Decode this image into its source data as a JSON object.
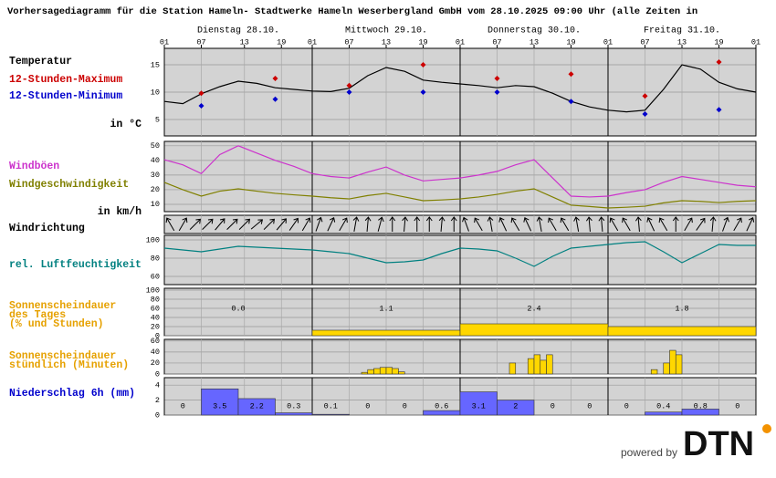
{
  "header": {
    "title": "Vorhersagediagramm für die Station Hameln- Stadtwerke Hameln Weserbergland GmbH vom 28.10.2025 09:00 Uhr (alle Zeiten in",
    "days": [
      "Dienstag 28.10.",
      "Mittwoch 29.10.",
      "Donnerstag 30.10.",
      "Freitag 31.10."
    ],
    "xlim": [
      0,
      96
    ],
    "xticks": [
      {
        "value": 0,
        "label": "01"
      },
      {
        "value": 6,
        "label": "07"
      },
      13,
      19,
      {
        "value": 24,
        "label": "01"
      },
      {
        "value": 30,
        "label": "07"
      },
      {
        "value": 36,
        "label": "13"
      },
      {
        "value": 42,
        "label": "19"
      },
      {
        "value": 48,
        "label": "01"
      },
      {
        "value": 54,
        "label": "07"
      },
      {
        "value": 60,
        "label": "13"
      },
      {
        "value": 66,
        "label": "19"
      },
      {
        "value": 72,
        "label": "01"
      },
      {
        "value": 78,
        "label": "07"
      },
      {
        "value": 84,
        "label": "13"
      },
      {
        "value": 90,
        "label": "19"
      },
      {
        "value": 96,
        "label": "01"
      }
    ]
  },
  "chart_data": [
    {
      "type": "line",
      "title": "Temperatur",
      "unit": "in °C",
      "ylim": [
        2,
        18
      ],
      "yticks": [
        5,
        10,
        15
      ],
      "grid": true,
      "series": [
        {
          "style": "line",
          "color": "#000000",
          "x": [
            0,
            3,
            6,
            9,
            12,
            15,
            18,
            21,
            24,
            27,
            30,
            33,
            36,
            39,
            42,
            45,
            48,
            51,
            54,
            57,
            60,
            63,
            66,
            69,
            72,
            75,
            78,
            81,
            84,
            87,
            90,
            93,
            96
          ],
          "values": [
            8.3,
            7.9,
            9.7,
            11.0,
            12.0,
            11.6,
            10.8,
            10.5,
            10.2,
            10.1,
            10.7,
            13.0,
            14.5,
            13.8,
            12.2,
            11.8,
            11.5,
            11.2,
            10.8,
            11.2,
            11.0,
            9.8,
            8.3,
            7.3,
            6.7,
            6.4,
            6.7,
            10.5,
            15.0,
            14.2,
            11.8,
            10.6,
            10.0
          ]
        },
        {
          "name": "12-Stunden-Maximum",
          "style": "points",
          "color": "#cc0000",
          "x": [
            6,
            18,
            30,
            42,
            54,
            66,
            78,
            90
          ],
          "values": [
            9.8,
            12.5,
            11.2,
            15.0,
            12.5,
            13.3,
            9.3,
            15.5
          ]
        },
        {
          "name": "12-Stunden-Minimum",
          "style": "points",
          "color": "#0000cc",
          "x": [
            6,
            18,
            30,
            42,
            54,
            66,
            78,
            90
          ],
          "values": [
            7.5,
            8.7,
            10.0,
            10.0,
            10.0,
            8.3,
            6.0,
            6.8
          ]
        }
      ]
    },
    {
      "type": "line",
      "unit": "in km/h",
      "ylim": [
        5,
        53
      ],
      "yticks": [
        10,
        20,
        30,
        40,
        50
      ],
      "grid": true,
      "series": [
        {
          "name": "Windböen",
          "style": "line",
          "color": "#cc33cc",
          "x": [
            0,
            3,
            6,
            9,
            12,
            15,
            18,
            21,
            24,
            27,
            30,
            33,
            36,
            39,
            42,
            45,
            48,
            51,
            54,
            57,
            60,
            63,
            66,
            69,
            72,
            75,
            78,
            81,
            84,
            87,
            90,
            93,
            96
          ],
          "values": [
            40.5,
            37,
            31,
            44,
            50,
            45,
            40,
            36,
            31,
            29,
            28,
            32,
            35.5,
            30,
            26,
            27,
            28,
            30,
            32.5,
            37,
            40.5,
            28,
            15.6,
            15,
            15.6,
            18,
            20,
            25,
            29,
            27,
            25,
            23,
            22
          ]
        },
        {
          "name": "Windgeschwindigkeit",
          "style": "line",
          "color": "#808000",
          "x": [
            0,
            3,
            6,
            9,
            12,
            15,
            18,
            21,
            24,
            27,
            30,
            33,
            36,
            39,
            42,
            45,
            48,
            51,
            54,
            57,
            60,
            63,
            66,
            69,
            72,
            75,
            78,
            81,
            84,
            87,
            90,
            93,
            96
          ],
          "values": [
            25,
            20,
            15.6,
            19,
            20.6,
            19,
            17.5,
            16.5,
            15.6,
            14.5,
            13.7,
            16,
            17.5,
            15,
            12.5,
            13,
            13.7,
            15,
            16.8,
            19,
            20.6,
            15,
            9.4,
            8.5,
            7.5,
            8,
            8.7,
            11,
            12.5,
            12,
            11.2,
            12,
            12.5
          ]
        }
      ]
    },
    {
      "type": "wind_direction",
      "title": "Windrichtung",
      "color": "#000000",
      "x": [
        1,
        3,
        5,
        7,
        9,
        11,
        13,
        15,
        17,
        19,
        21,
        23,
        25,
        27,
        29,
        31,
        33,
        35,
        37,
        39,
        41,
        43,
        45,
        47,
        49,
        51,
        53,
        55,
        57,
        59,
        61,
        63,
        65,
        67,
        69,
        71,
        73,
        75,
        77,
        79,
        81,
        83,
        85,
        87,
        89,
        91,
        93,
        95
      ],
      "values": [
        150,
        210,
        225,
        225,
        220,
        225,
        225,
        230,
        225,
        220,
        215,
        210,
        200,
        205,
        210,
        190,
        185,
        195,
        180,
        185,
        180,
        180,
        185,
        180,
        160,
        150,
        170,
        155,
        150,
        155,
        170,
        150,
        150,
        170,
        175,
        175,
        150,
        150,
        175,
        155,
        150,
        180,
        210,
        215,
        185,
        200,
        210,
        205
      ]
    },
    {
      "type": "line",
      "ylim": [
        51,
        105
      ],
      "yticks": [
        60,
        80,
        100
      ],
      "grid": true,
      "series": [
        {
          "name": "rel. Luftfeuchtigkeit",
          "style": "line",
          "color": "#008080",
          "x": [
            0,
            3,
            6,
            9,
            12,
            15,
            18,
            21,
            24,
            27,
            30,
            33,
            36,
            39,
            42,
            45,
            48,
            51,
            54,
            57,
            60,
            63,
            66,
            69,
            72,
            75,
            78,
            81,
            84,
            87,
            90,
            93,
            96
          ],
          "values": [
            91,
            89,
            87,
            90,
            93,
            92,
            91,
            90,
            89,
            87,
            85,
            80,
            75,
            76,
            78,
            85,
            91,
            90,
            88,
            80,
            71,
            82,
            91,
            93,
            95,
            97,
            98,
            87,
            75,
            85,
            95,
            94,
            94
          ]
        }
      ]
    },
    {
      "type": "histogram",
      "title": [
        "Sonnenscheindauer",
        "des Tages",
        "(% und Stunden)"
      ],
      "title_color": "#e6a100",
      "color": "#ffd700",
      "ylim": [
        0,
        104
      ],
      "yticks": [
        0,
        20,
        40,
        60,
        80,
        100
      ],
      "grid": true,
      "bins": [
        0,
        24,
        48,
        72,
        96
      ],
      "values": [
        0,
        12,
        26,
        20
      ],
      "hours": [
        {
          "value": 0,
          "label": "0.0"
        },
        1.1,
        2.4,
        1.8
      ]
    },
    {
      "type": "bar",
      "title": [
        "Sonnenscheindauer",
        "stündlich (Minuten)"
      ],
      "title_color": "#e6a100",
      "color": "#ffd700",
      "ylim": [
        0,
        63
      ],
      "yticks": [
        0,
        20,
        40,
        60
      ],
      "grid": true,
      "x": [
        32,
        33,
        34,
        35,
        36,
        37,
        38,
        56,
        59,
        60,
        61,
        62,
        79,
        81,
        82,
        83
      ],
      "values": [
        3,
        8,
        10,
        12,
        12,
        10,
        4,
        20,
        28,
        35,
        25,
        35,
        8,
        20,
        43,
        35
      ]
    },
    {
      "type": "histogram",
      "title": "Niederschlag 6h (mm)",
      "title_color": "#0000cc",
      "color": "#6666ff",
      "ylim": [
        0,
        5
      ],
      "yticks": [
        0,
        2,
        4
      ],
      "grid": true,
      "bins": [
        0,
        6,
        12,
        18,
        24,
        30,
        36,
        42,
        48,
        54,
        60,
        66,
        72,
        78,
        84,
        90,
        96
      ],
      "values": [
        0,
        3.5,
        2.2,
        0.3,
        0.1,
        0,
        0,
        0.6,
        3.1,
        2,
        0,
        0,
        0,
        0.4,
        0.8,
        0
      ]
    }
  ],
  "footer": {
    "powered_by": "powered by",
    "logo": "DTN"
  }
}
